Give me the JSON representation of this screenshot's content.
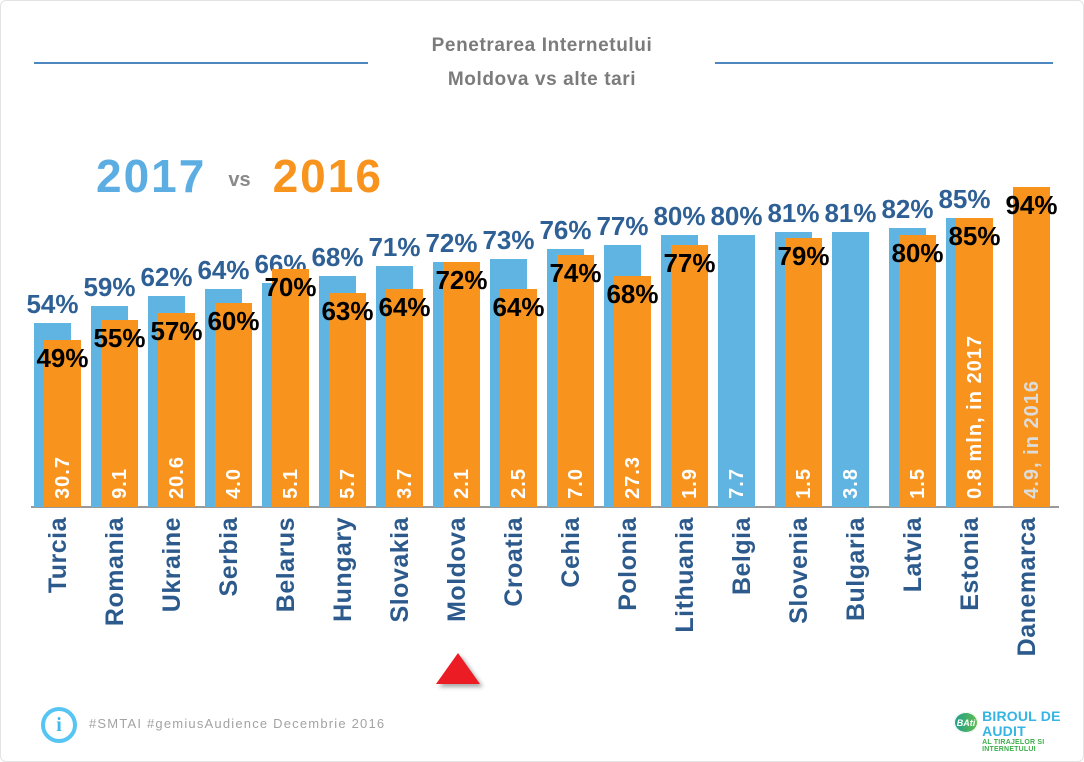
{
  "header": {
    "title_line1": "Penetrarea Internetului",
    "title_line2": "Moldova vs alte tari"
  },
  "legend": {
    "year_2017": "2017",
    "vs": "vs",
    "year_2016": "2016",
    "color_2017": "#5badE2",
    "color_2016": "#f8941d"
  },
  "chart_data": {
    "type": "bar",
    "title": "Penetrarea Internetului - Moldova vs alte tari",
    "unit": "%",
    "ylim": [
      0,
      100
    ],
    "grid": false,
    "legend_position": "top-left",
    "categories": [
      "Turcia",
      "Romania",
      "Ukraine",
      "Serbia",
      "Belarus",
      "Hungary",
      "Slovakia",
      "Moldova",
      "Croatia",
      "Cehia",
      "Polonia",
      "Lithuania",
      "Belgia",
      "Slovenia",
      "Bulgaria",
      "Latvia",
      "Estonia",
      "Danemarca"
    ],
    "series": [
      {
        "name": "2017",
        "color": "#5fb4e1",
        "label_color": "#2e6095",
        "values": [
          54,
          59,
          62,
          64,
          66,
          68,
          71,
          72,
          73,
          76,
          77,
          80,
          80,
          81,
          81,
          82,
          85,
          null
        ]
      },
      {
        "name": "2016",
        "color": "#f8941d",
        "label_color": "#000000",
        "values": [
          49,
          55,
          57,
          60,
          70,
          63,
          64,
          72,
          64,
          74,
          68,
          77,
          null,
          79,
          null,
          80,
          85,
          94
        ]
      }
    ],
    "bar_inner_labels": [
      "30.7",
      "9.1",
      "20.6",
      "4.0",
      "5.1",
      "5.7",
      "3.7",
      "2.1",
      "2.5",
      "7.0",
      "27.3",
      "1.9",
      "7.7",
      "1.5",
      "3.8",
      "1.5",
      "0.8 mln, in 2017",
      "4.9, in 2016"
    ],
    "muted_inner_indexes": [
      17
    ],
    "muted_inner_label_color": "#dcdcdc",
    "highlight": {
      "category": "Moldova",
      "symbol": "red-triangle",
      "color": "#ec1c24"
    }
  },
  "footer": {
    "info_icon": "i",
    "hashtags": "#SMTAI #gemiusAudience Decembrie 2016"
  },
  "logo": {
    "abbr": "BAti",
    "line1": "BIROUL DE AUDIT",
    "line2": "AL TIRAJELOR SI INTERNETULUI"
  }
}
